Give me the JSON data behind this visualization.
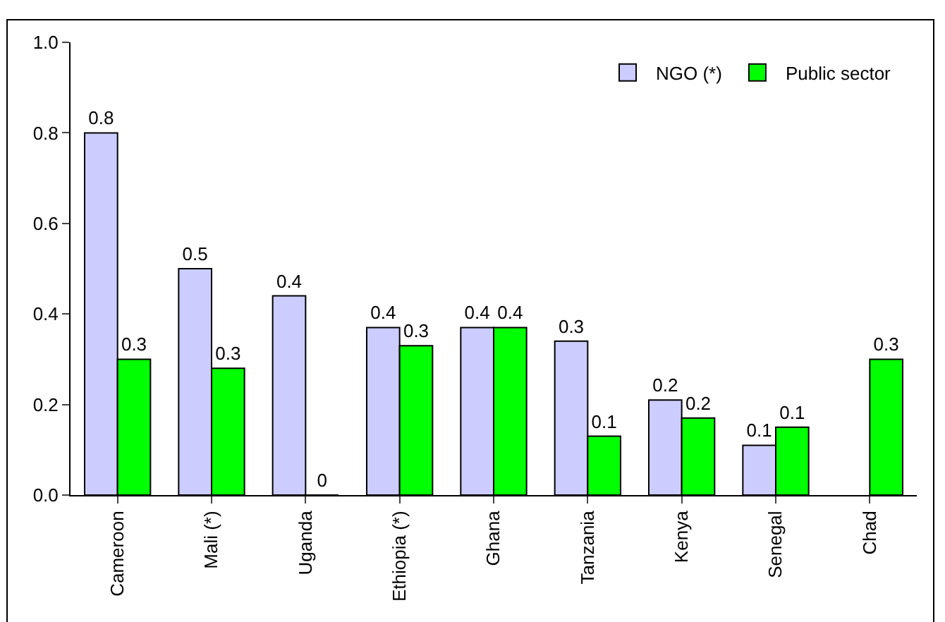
{
  "chart_data": {
    "type": "bar",
    "categories": [
      "Cameroon",
      "Mali (*)",
      "Uganda",
      "Ethiopia (*)",
      "Ghana",
      "Tanzania",
      "Kenya",
      "Senegal",
      "Chad"
    ],
    "series": [
      {
        "name": "NGO (*)",
        "color": "#ccccff",
        "values": [
          0.8,
          0.5,
          0.44,
          0.37,
          0.37,
          0.34,
          0.21,
          0.11,
          null
        ],
        "value_labels": [
          "0.8",
          "0.5",
          "0.4",
          "0.4",
          "0.4",
          "0.3",
          "0.2",
          "0.1",
          null
        ]
      },
      {
        "name": "Public sector",
        "color": "#00ff00",
        "values": [
          0.3,
          0.28,
          0,
          0.33,
          0.37,
          0.13,
          0.17,
          0.15,
          0.3
        ],
        "value_labels": [
          "0.3",
          "0.3",
          "0",
          "0.3",
          "0.4",
          "0.1",
          "0.2",
          "0.1",
          "0.3"
        ]
      }
    ],
    "ylim": [
      0,
      1
    ],
    "yticks": [
      {
        "value": 0,
        "label": "0.0"
      },
      {
        "value": 0.2,
        "label": "0.2"
      },
      {
        "value": 0.4,
        "label": "0.4"
      },
      {
        "value": 0.6,
        "label": "0.6"
      },
      {
        "value": 0.8,
        "label": "0.8"
      },
      {
        "value": 1,
        "label": "1.0"
      }
    ],
    "grid": false,
    "legend": "top right"
  }
}
